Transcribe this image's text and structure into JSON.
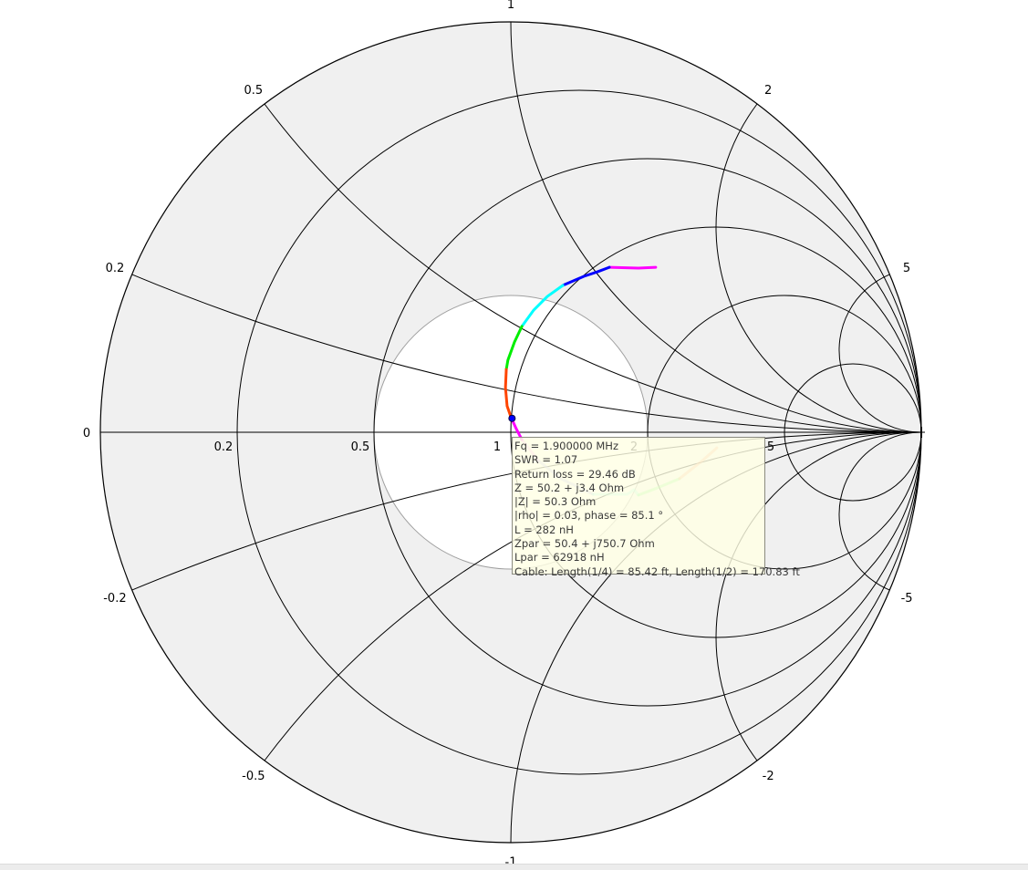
{
  "chart_data": {
    "type": "smith",
    "colors": {
      "background_inside": "#f0f0f0",
      "swr_circle_fill": "#ffffff",
      "swr_circle_stroke": "#a0a0a0",
      "grid": "#000000"
    },
    "swr_circle": 2,
    "resistance_circles": [
      0.2,
      0.5,
      1,
      2,
      5
    ],
    "reactance_arcs": [
      0.2,
      0.5,
      1,
      2,
      5,
      -0.2,
      -0.5,
      -1,
      -2,
      -5
    ],
    "resistance_labels": [
      {
        "r": 0,
        "text": "0"
      },
      {
        "r": 0.2,
        "text": "0.2"
      },
      {
        "r": 0.5,
        "text": "0.5"
      },
      {
        "r": 1,
        "text": "1"
      },
      {
        "r": 2,
        "text": "2"
      },
      {
        "r": 5,
        "text": "5"
      }
    ],
    "reactance_labels": [
      {
        "x": 0.2,
        "text": "0.2"
      },
      {
        "x": 0.5,
        "text": "0.5"
      },
      {
        "x": 1,
        "text": "1"
      },
      {
        "x": 2,
        "text": "2"
      },
      {
        "x": 5,
        "text": "5"
      },
      {
        "x": -0.2,
        "text": "-0.2"
      },
      {
        "x": -0.5,
        "text": "-0.5"
      },
      {
        "x": -1,
        "text": "-1"
      },
      {
        "x": -2,
        "text": "-2"
      },
      {
        "x": -5,
        "text": "-5"
      }
    ],
    "trace": [
      {
        "color": "#ff00ff",
        "opacity": 1,
        "points": [
          [
            0.353,
            0.402
          ],
          [
            0.311,
            0.4
          ],
          [
            0.24,
            0.402
          ]
        ]
      },
      {
        "color": "#0000ff",
        "opacity": 1,
        "points": [
          [
            0.24,
            0.402
          ],
          [
            0.211,
            0.391
          ],
          [
            0.178,
            0.38
          ],
          [
            0.127,
            0.358
          ]
        ]
      },
      {
        "color": "#00ffff",
        "opacity": 1,
        "points": [
          [
            0.127,
            0.358
          ],
          [
            0.089,
            0.331
          ],
          [
            0.056,
            0.298
          ],
          [
            0.027,
            0.258
          ]
        ]
      },
      {
        "color": "#00ee00",
        "opacity": 1,
        "points": [
          [
            0.027,
            0.258
          ],
          [
            0.009,
            0.22
          ],
          [
            -0.007,
            0.176
          ],
          [
            -0.011,
            0.153
          ]
        ]
      },
      {
        "color": "#ff4500",
        "opacity": 1,
        "points": [
          [
            -0.011,
            0.153
          ],
          [
            -0.013,
            0.109
          ],
          [
            -0.009,
            0.064
          ],
          [
            0.0,
            0.038
          ]
        ]
      },
      {
        "color": "#ff00ff",
        "opacity": 1,
        "points": [
          [
            0.0,
            0.038
          ],
          [
            0.013,
            0.009
          ],
          [
            0.027,
            -0.018
          ]
        ]
      },
      {
        "color": "#ff80ff",
        "opacity": 0.55,
        "points": [
          [
            0.027,
            -0.018
          ],
          [
            0.067,
            -0.069
          ]
        ]
      },
      {
        "color": "#8080ff",
        "opacity": 0.45,
        "points": [
          [
            0.067,
            -0.069
          ],
          [
            0.122,
            -0.113
          ],
          [
            0.2,
            -0.151
          ]
        ]
      },
      {
        "color": "#60ffe0",
        "opacity": 0.45,
        "points": [
          [
            0.2,
            -0.151
          ],
          [
            0.284,
            -0.151
          ],
          [
            0.3,
            -0.14
          ],
          [
            0.311,
            -0.153
          ]
        ]
      },
      {
        "color": "#40ff40",
        "opacity": 0.45,
        "points": [
          [
            0.311,
            -0.153
          ],
          [
            0.356,
            -0.136
          ],
          [
            0.411,
            -0.113
          ]
        ]
      },
      {
        "color": "#ff8040",
        "opacity": 0.45,
        "points": [
          [
            0.411,
            -0.113
          ],
          [
            0.467,
            -0.069
          ],
          [
            0.502,
            -0.038
          ]
        ]
      }
    ],
    "marker": {
      "re": 0.003,
      "im": 0.034,
      "color": "#0000ff"
    }
  },
  "tooltip": {
    "lines": [
      "Fq = 1.900000 MHz",
      "SWR = 1.07",
      "Return loss = 29.46 dB",
      "Z = 50.2 + j3.4 Ohm",
      "|Z| = 50.3 Ohm",
      "|rho| = 0.03, phase = 85.1 °",
      "L = 282 nH",
      "Zpar = 50.4 + j750.7 Ohm",
      "Lpar = 62918 nH",
      "Cable: Length(1/4) = 85.42 ft, Length(1/2) = 170.83 ft"
    ]
  }
}
